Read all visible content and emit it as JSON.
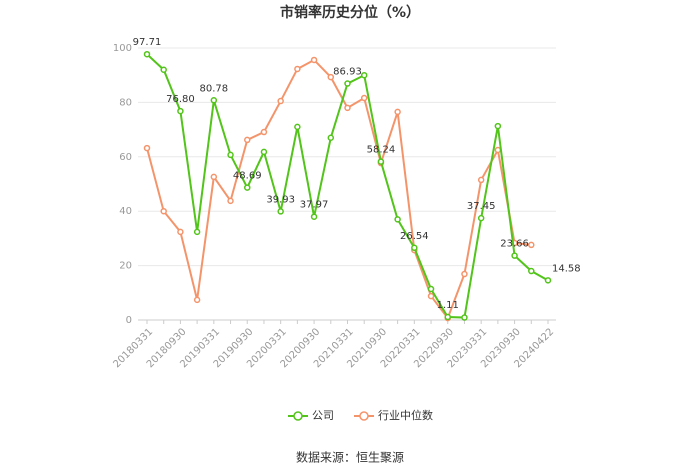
{
  "chart_data": {
    "type": "line",
    "title": "市销率历史分位（%）",
    "source": "数据来源：恒生聚源",
    "categories": [
      "20180331",
      null,
      "20180930",
      null,
      "20190331",
      null,
      "20190930",
      null,
      "20200331",
      null,
      "20200930",
      null,
      "20210331",
      null,
      "20210930",
      null,
      "20220331",
      null,
      "20220930",
      null,
      "20230331",
      null,
      "20230930",
      null,
      "20240422"
    ],
    "series": [
      {
        "name": "公司",
        "color": "#52c41a",
        "values": [
          97.71,
          92,
          76.8,
          32.4,
          80.78,
          60.7,
          48.69,
          61.8,
          39.93,
          71,
          37.97,
          67,
          86.93,
          90,
          58.24,
          37,
          26.54,
          11.4,
          1.11,
          0.9,
          37.45,
          71.3,
          23.66,
          18,
          14.58
        ],
        "value_labels": [
          "97.71",
          null,
          "76.80",
          null,
          "80.78",
          null,
          "48.69",
          null,
          "39.93",
          null,
          "37.97",
          null,
          "86.93",
          null,
          "58.24",
          null,
          "26.54",
          null,
          "1.11",
          null,
          "37.45",
          null,
          "23.66",
          null,
          "14.58"
        ]
      },
      {
        "name": "行业中位数",
        "color": "#f4946b",
        "values": [
          63.2,
          40,
          32.4,
          7.4,
          52.6,
          43.8,
          66.2,
          69.1,
          80.5,
          92.3,
          95.6,
          89.3,
          78,
          81.6,
          57.7,
          76.5,
          25.7,
          8.8,
          0.7,
          16.9,
          51.5,
          62.5,
          28.3,
          27.6,
          null
        ]
      }
    ],
    "ylim": [
      0,
      100
    ],
    "yticks": [
      0,
      20,
      40,
      60,
      80,
      100
    ],
    "grid": true,
    "legend": "bottom"
  }
}
